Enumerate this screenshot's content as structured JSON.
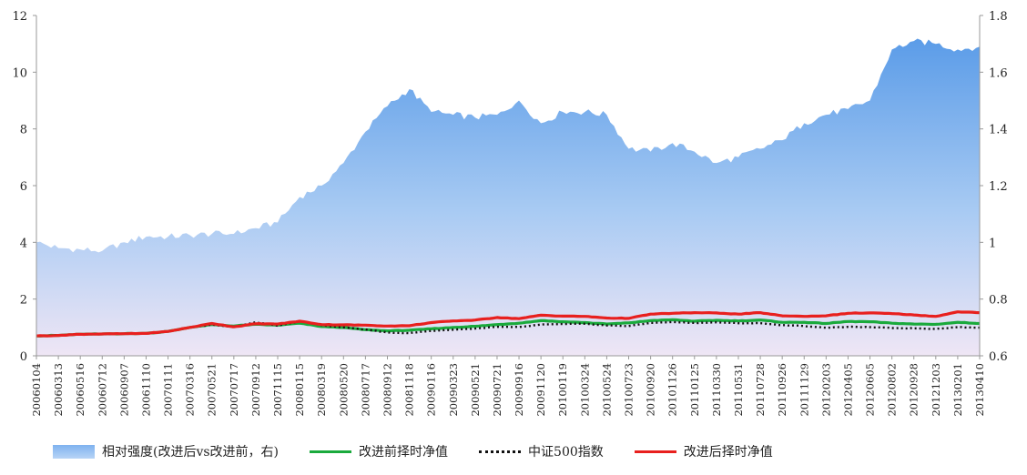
{
  "chart_data": {
    "type": "line",
    "title": "",
    "xlabel": "",
    "ylabel": "",
    "ylim": [
      0,
      12
    ],
    "y2lim": [
      0.6,
      1.8
    ],
    "yticks": [
      "0",
      "2",
      "4",
      "6",
      "8",
      "10",
      "12"
    ],
    "y2ticks": [
      "0.6",
      "0.8",
      "1",
      "1.2",
      "1.4",
      "1.6",
      "1.8"
    ],
    "x": [
      "20060104",
      "20060313",
      "20060516",
      "20060712",
      "20060907",
      "20061110",
      "20070111",
      "20070316",
      "20070521",
      "20070717",
      "20070912",
      "20071115",
      "20080115",
      "20080319",
      "20080520",
      "20080717",
      "20080912",
      "20081118",
      "20090116",
      "20090323",
      "20090521",
      "20090721",
      "20090916",
      "20091120",
      "20100119",
      "20100324",
      "20100524",
      "20100723",
      "20100920",
      "20101126",
      "20110125",
      "20110330",
      "20110531",
      "20110728",
      "20110926",
      "20111129",
      "20120203",
      "20120405",
      "20120605",
      "20120802",
      "20120928",
      "20121203",
      "20130201",
      "20130410"
    ],
    "series": [
      {
        "name": "相对强度(改进后vs改进前，右)",
        "type": "area",
        "axis": "right",
        "color": "#6fa8ec",
        "values": [
          1.0,
          0.98,
          0.975,
          0.97,
          1.0,
          1.02,
          1.02,
          1.025,
          1.03,
          1.03,
          1.05,
          1.07,
          1.16,
          1.2,
          1.28,
          1.39,
          1.48,
          1.54,
          1.46,
          1.45,
          1.44,
          1.45,
          1.5,
          1.42,
          1.46,
          1.46,
          1.45,
          1.33,
          1.32,
          1.35,
          1.32,
          1.28,
          1.3,
          1.33,
          1.36,
          1.42,
          1.45,
          1.47,
          1.5,
          1.68,
          1.71,
          1.7,
          1.68,
          1.69
        ]
      },
      {
        "name": "改进前择时净值",
        "type": "line",
        "axis": "left",
        "color": "#1aaa3c",
        "values": [
          0.7,
          0.72,
          0.76,
          0.77,
          0.78,
          0.79,
          0.86,
          1.0,
          1.1,
          1.05,
          1.11,
          1.08,
          1.15,
          1.03,
          1.0,
          0.92,
          0.88,
          0.9,
          0.95,
          1.0,
          1.04,
          1.1,
          1.15,
          1.24,
          1.2,
          1.17,
          1.12,
          1.16,
          1.24,
          1.27,
          1.22,
          1.25,
          1.23,
          1.26,
          1.18,
          1.18,
          1.14,
          1.21,
          1.2,
          1.15,
          1.12,
          1.11,
          1.18,
          1.14
        ]
      },
      {
        "name": "中证500指数",
        "type": "dotted",
        "axis": "left",
        "color": "#111111",
        "values": [
          0.7,
          0.72,
          0.76,
          0.77,
          0.78,
          0.79,
          0.86,
          1.0,
          1.1,
          1.01,
          1.18,
          1.06,
          1.22,
          1.08,
          1.0,
          0.93,
          0.82,
          0.8,
          0.88,
          0.92,
          0.96,
          1.02,
          1.01,
          1.1,
          1.12,
          1.13,
          1.07,
          1.05,
          1.16,
          1.19,
          1.16,
          1.18,
          1.15,
          1.15,
          1.08,
          1.05,
          0.99,
          1.02,
          1.01,
          0.98,
          0.97,
          0.95,
          1.01,
          0.99
        ]
      },
      {
        "name": "改进后择时净值",
        "type": "line",
        "axis": "left",
        "color": "#e8201e",
        "values": [
          0.7,
          0.72,
          0.76,
          0.77,
          0.78,
          0.79,
          0.86,
          1.0,
          1.14,
          1.02,
          1.13,
          1.12,
          1.22,
          1.1,
          1.09,
          1.08,
          1.05,
          1.06,
          1.17,
          1.23,
          1.26,
          1.35,
          1.31,
          1.43,
          1.4,
          1.39,
          1.33,
          1.32,
          1.47,
          1.5,
          1.52,
          1.51,
          1.47,
          1.52,
          1.41,
          1.39,
          1.41,
          1.5,
          1.51,
          1.49,
          1.44,
          1.39,
          1.55,
          1.52
        ]
      }
    ],
    "legend_position": "bottom",
    "grid": false
  }
}
